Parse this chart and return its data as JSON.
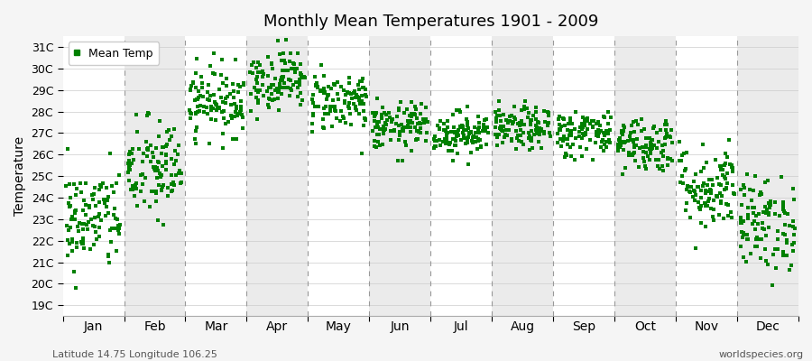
{
  "title": "Monthly Mean Temperatures 1901 - 2009",
  "ylabel": "Temperature",
  "xlabel_labels": [
    "Jan",
    "Feb",
    "Mar",
    "Apr",
    "May",
    "Jun",
    "Jul",
    "Aug",
    "Sep",
    "Oct",
    "Nov",
    "Dec"
  ],
  "ytick_labels": [
    "19C",
    "20C",
    "21C",
    "22C",
    "23C",
    "24C",
    "25C",
    "26C",
    "27C",
    "28C",
    "29C",
    "30C",
    "31C"
  ],
  "ytick_values": [
    19,
    20,
    21,
    22,
    23,
    24,
    25,
    26,
    27,
    28,
    29,
    30,
    31
  ],
  "ylim": [
    18.5,
    31.5
  ],
  "xlim": [
    0,
    12
  ],
  "marker_color": "#008000",
  "marker": "s",
  "marker_size": 2.5,
  "background_color": "#f5f5f5",
  "band_color_light": "#ffffff",
  "band_color_dark": "#ebebeb",
  "legend_label": "Mean Temp",
  "footnote_left": "Latitude 14.75 Longitude 106.25",
  "footnote_right": "worldspecies.org",
  "monthly_mean": [
    23.0,
    25.3,
    28.5,
    29.5,
    28.5,
    27.3,
    27.0,
    27.2,
    27.0,
    26.5,
    24.5,
    22.8
  ],
  "monthly_std": [
    1.2,
    1.2,
    0.8,
    0.7,
    0.7,
    0.55,
    0.5,
    0.5,
    0.55,
    0.65,
    1.0,
    1.1
  ],
  "n_years": 109
}
